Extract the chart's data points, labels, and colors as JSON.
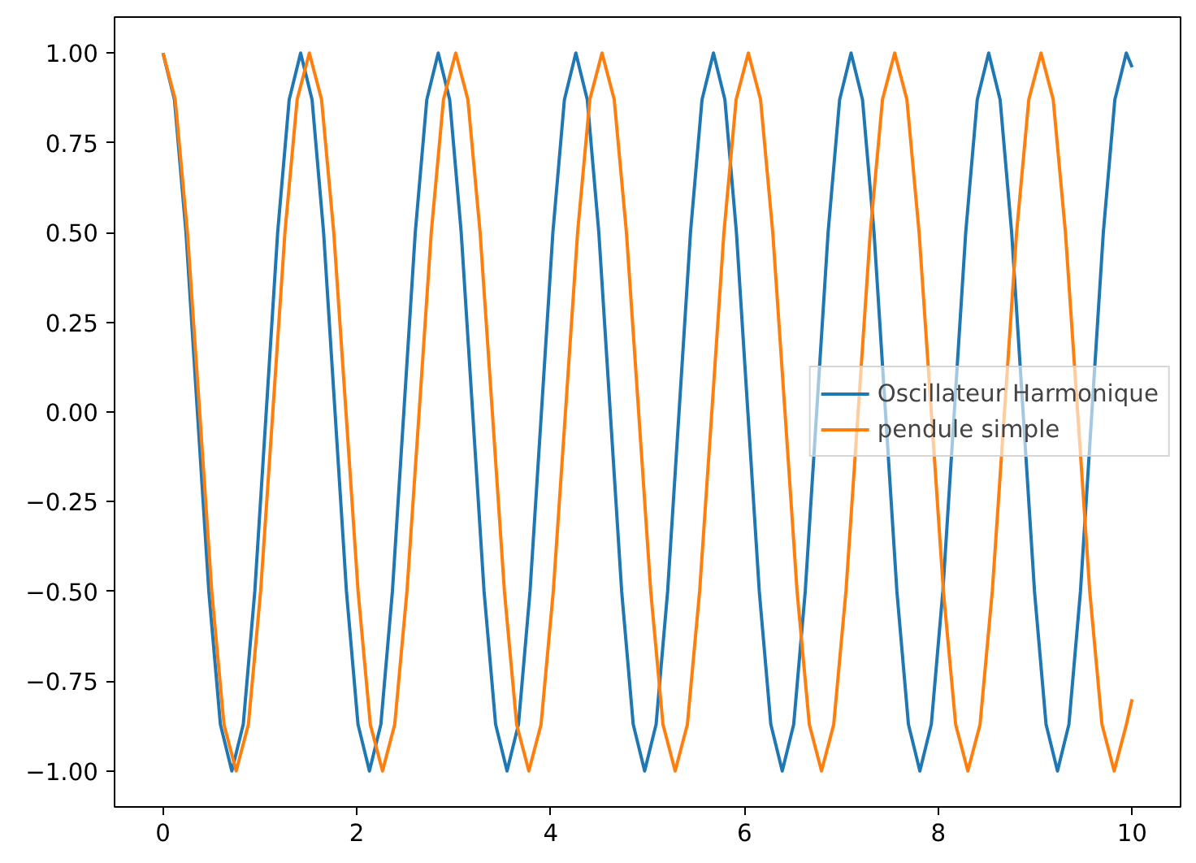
{
  "chart_data": {
    "type": "line",
    "xlim": [
      -0.5,
      10.5
    ],
    "ylim": [
      -1.1,
      1.1
    ],
    "xticks": [
      0,
      2,
      4,
      6,
      8,
      10
    ],
    "yticks": [
      {
        "value": -1,
        "label": "−1.00"
      },
      {
        "value": -0.75,
        "label": "−0.75"
      },
      {
        "value": -0.5,
        "label": "−0.50"
      },
      {
        "value": -0.25,
        "label": "−0.25"
      },
      {
        "value": 0,
        "label": "0.00"
      },
      {
        "value": 0.25,
        "label": "0.25"
      },
      {
        "value": 0.5,
        "label": "0.50"
      },
      {
        "value": 0.75,
        "label": "0.75"
      },
      {
        "value": 1,
        "label": "1.00"
      }
    ],
    "grid": false,
    "legend": "right",
    "line_style": "solid",
    "marker": "none",
    "series": [
      {
        "name": "Oscillateur Harmonique",
        "color": "#1f77b4",
        "x": [
          0,
          0.118,
          0.237,
          0.355,
          0.473,
          0.592,
          0.71,
          0.828,
          0.947,
          1.065,
          1.183,
          1.302,
          1.42,
          1.538,
          1.657,
          1.775,
          1.893,
          2.012,
          2.13,
          2.248,
          2.367,
          2.485,
          2.603,
          2.722,
          2.84,
          2.958,
          3.077,
          3.195,
          3.313,
          3.432,
          3.55,
          3.668,
          3.787,
          3.905,
          4.023,
          4.142,
          4.26,
          4.378,
          4.497,
          4.615,
          4.733,
          4.852,
          4.97,
          5.088,
          5.207,
          5.325,
          5.443,
          5.562,
          5.68,
          5.798,
          5.917,
          6.035,
          6.153,
          6.272,
          6.39,
          6.508,
          6.627,
          6.745,
          6.863,
          6.982,
          7.1,
          7.218,
          7.337,
          7.455,
          7.573,
          7.692,
          7.81,
          7.928,
          8.047,
          8.165,
          8.283,
          8.402,
          8.52,
          8.638,
          8.757,
          8.875,
          8.993,
          9.112,
          9.23,
          9.348,
          9.467,
          9.585,
          9.703,
          9.822,
          9.94,
          10
        ],
        "values": [
          1,
          0.87,
          0.5,
          0,
          -0.5,
          -0.87,
          -1,
          -0.87,
          -0.5,
          0,
          0.5,
          0.87,
          1,
          0.87,
          0.5,
          0,
          -0.5,
          -0.87,
          -1,
          -0.87,
          -0.5,
          0,
          0.5,
          0.87,
          1,
          0.87,
          0.5,
          0,
          -0.5,
          -0.87,
          -1,
          -0.87,
          -0.5,
          0,
          0.5,
          0.87,
          1,
          0.87,
          0.5,
          0,
          -0.5,
          -0.87,
          -1,
          -0.87,
          -0.5,
          0,
          0.5,
          0.87,
          1,
          0.87,
          0.5,
          0,
          -0.5,
          -0.87,
          -1,
          -0.87,
          -0.5,
          0,
          0.5,
          0.87,
          1,
          0.87,
          0.5,
          0,
          -0.5,
          -0.87,
          -1,
          -0.87,
          -0.5,
          0,
          0.5,
          0.87,
          1,
          0.87,
          0.5,
          0,
          -0.5,
          -0.87,
          -1,
          -0.87,
          -0.5,
          0,
          0.5,
          0.87,
          1,
          0.96
        ]
      },
      {
        "name": "pendule simple",
        "color": "#ff7f0e",
        "x": [
          0,
          0.126,
          0.252,
          0.378,
          0.503,
          0.629,
          0.755,
          0.881,
          1.007,
          1.133,
          1.258,
          1.384,
          1.51,
          1.636,
          1.762,
          1.888,
          2.013,
          2.139,
          2.265,
          2.391,
          2.517,
          2.643,
          2.768,
          2.894,
          3.02,
          3.146,
          3.272,
          3.398,
          3.523,
          3.649,
          3.775,
          3.901,
          4.027,
          4.153,
          4.278,
          4.404,
          4.53,
          4.656,
          4.782,
          4.908,
          5.033,
          5.159,
          5.285,
          5.411,
          5.537,
          5.663,
          5.788,
          5.914,
          6.04,
          6.166,
          6.292,
          6.418,
          6.543,
          6.669,
          6.795,
          6.921,
          7.047,
          7.173,
          7.298,
          7.424,
          7.55,
          7.676,
          7.802,
          7.928,
          8.053,
          8.179,
          8.305,
          8.431,
          8.557,
          8.683,
          8.808,
          8.934,
          9.06,
          9.186,
          9.312,
          9.438,
          9.563,
          9.689,
          9.815,
          9.941,
          10
        ],
        "values": [
          1,
          0.87,
          0.5,
          0,
          -0.5,
          -0.87,
          -1,
          -0.87,
          -0.5,
          0,
          0.5,
          0.87,
          1,
          0.87,
          0.5,
          0,
          -0.5,
          -0.87,
          -1,
          -0.87,
          -0.5,
          0,
          0.5,
          0.87,
          1,
          0.87,
          0.5,
          0,
          -0.5,
          -0.87,
          -1,
          -0.87,
          -0.5,
          0,
          0.5,
          0.87,
          1,
          0.87,
          0.5,
          0,
          -0.5,
          -0.87,
          -1,
          -0.87,
          -0.5,
          0,
          0.5,
          0.87,
          1,
          0.87,
          0.5,
          0,
          -0.5,
          -0.87,
          -1,
          -0.87,
          -0.5,
          0,
          0.5,
          0.87,
          1,
          0.87,
          0.5,
          0,
          -0.5,
          -0.87,
          -1,
          -0.87,
          -0.5,
          0,
          0.5,
          0.87,
          1,
          0.87,
          0.5,
          0,
          -0.5,
          -0.87,
          -1,
          -0.87,
          -0.8
        ]
      }
    ]
  }
}
